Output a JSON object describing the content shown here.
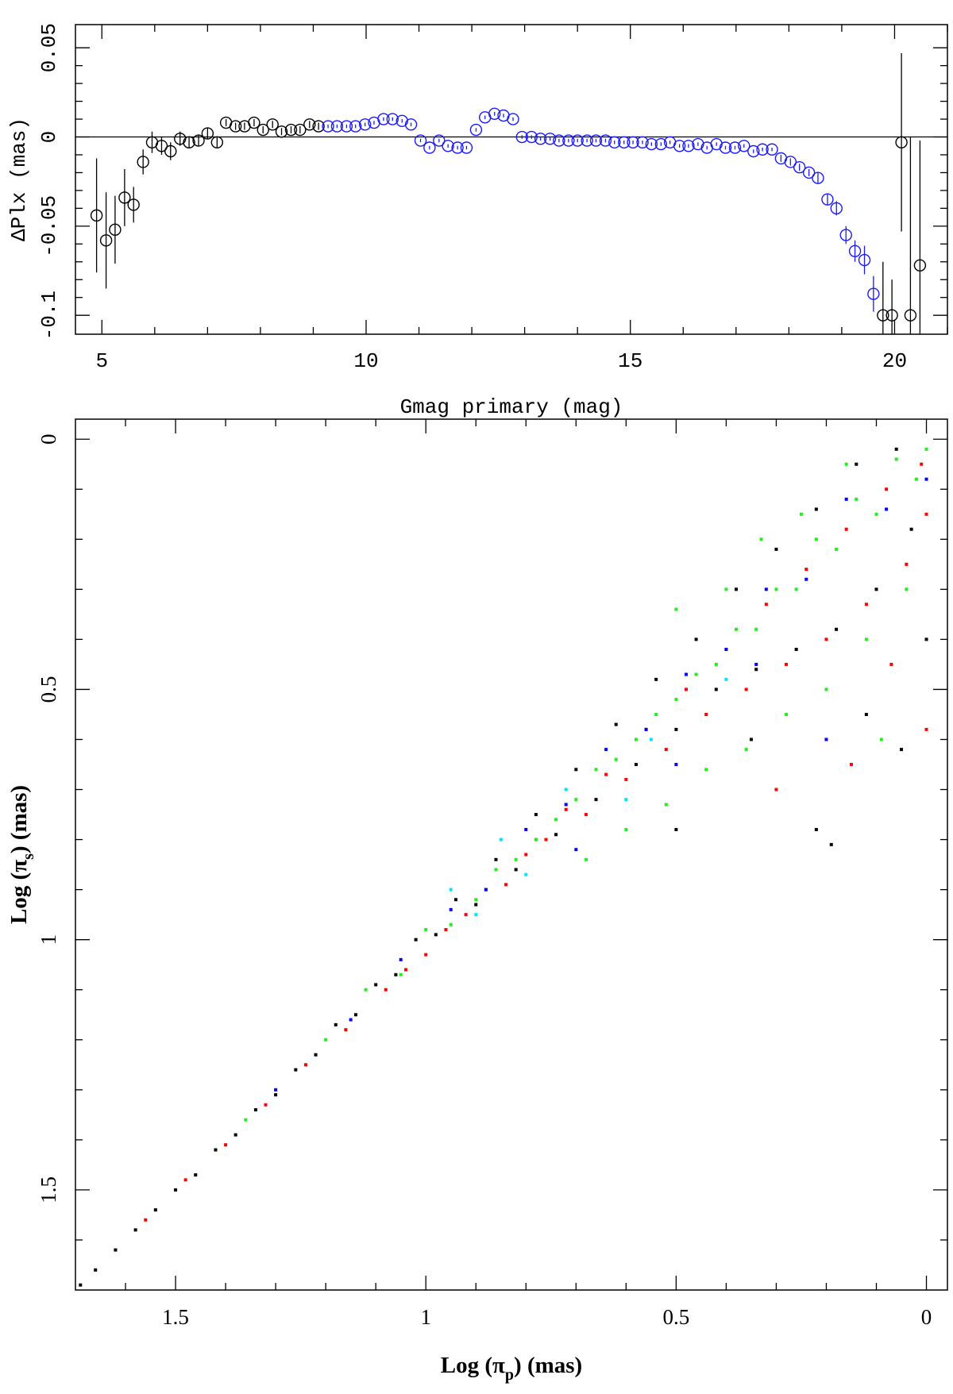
{
  "chart_data": [
    {
      "type": "errorbar",
      "x_label": "Gmag primary (mag)",
      "y_label": "ΔPlx (mas)",
      "xlim": [
        4.5,
        21
      ],
      "ylim": [
        -0.1106,
        0.063
      ],
      "xticks": [
        5,
        10,
        15,
        20
      ],
      "yticks": [
        -0.1,
        -0.05,
        0,
        0.05
      ],
      "xminorticks": [
        6,
        7,
        8,
        9,
        11,
        12,
        13,
        14,
        16,
        17,
        18,
        19,
        21
      ],
      "yminorticks": [
        -0.09,
        -0.08,
        -0.07,
        -0.06,
        -0.04,
        -0.03,
        -0.02,
        -0.01,
        0.01,
        0.02,
        0.03,
        0.04
      ],
      "reference_line": 0,
      "series": [
        {
          "color": "#000000",
          "x": [
            4.9,
            5.08,
            5.25,
            5.43,
            5.6,
            5.78,
            5.95,
            6.13,
            6.3,
            6.48,
            6.65,
            6.83,
            7.0,
            7.18,
            7.35,
            7.53,
            7.7,
            7.88,
            8.05,
            8.23,
            8.4,
            8.58,
            8.75,
            8.93,
            9.1,
            19.78,
            19.95,
            20.13,
            20.3,
            20.48
          ],
          "values": [
            -0.044,
            -0.058,
            -0.052,
            -0.034,
            -0.038,
            -0.014,
            -0.003,
            -0.005,
            -0.008,
            -0.001,
            -0.003,
            -0.002,
            0.002,
            -0.003,
            0.008,
            0.006,
            0.006,
            0.008,
            0.004,
            0.007,
            0.003,
            0.004,
            0.004,
            0.007,
            0.006,
            -0.1,
            -0.1,
            -0.003,
            -0.1,
            -0.072
          ],
          "errors": [
            0.032,
            0.027,
            0.019,
            0.016,
            0.01,
            0.007,
            0.006,
            0.005,
            0.005,
            0.004,
            0.003,
            0.003,
            0.003,
            0.003,
            0.002,
            0.002,
            0.002,
            0.002,
            0.002,
            0.002,
            0.002,
            0.002,
            0.002,
            0.002,
            0.002,
            0.03,
            0.02,
            0.05,
            0.1,
            0.07
          ]
        },
        {
          "color": "#1a1aff",
          "x": [
            9.28,
            9.45,
            9.63,
            9.8,
            9.98,
            10.15,
            10.33,
            10.5,
            10.68,
            10.85,
            11.03,
            11.2,
            11.38,
            11.55,
            11.73,
            11.9,
            12.08,
            12.25,
            12.43,
            12.6,
            12.78,
            12.95,
            13.13,
            13.3,
            13.48,
            13.65,
            13.83,
            14.0,
            14.18,
            14.35,
            14.53,
            14.7,
            14.88,
            15.05,
            15.23,
            15.4,
            15.58,
            15.75,
            15.93,
            16.1,
            16.28,
            16.45,
            16.63,
            16.8,
            16.98,
            17.15,
            17.33,
            17.5,
            17.68,
            17.85,
            18.03,
            18.2,
            18.38,
            18.55,
            18.73,
            18.9,
            19.08,
            19.25,
            19.43,
            19.6
          ],
          "values": [
            0.006,
            0.006,
            0.006,
            0.006,
            0.007,
            0.008,
            0.01,
            0.01,
            0.009,
            0.007,
            -0.002,
            -0.006,
            -0.002,
            -0.005,
            -0.006,
            -0.006,
            0.004,
            0.011,
            0.013,
            0.012,
            0.01,
            0.0,
            0.0,
            -0.001,
            -0.001,
            -0.002,
            -0.002,
            -0.002,
            -0.002,
            -0.002,
            -0.002,
            -0.003,
            -0.003,
            -0.003,
            -0.003,
            -0.004,
            -0.004,
            -0.003,
            -0.005,
            -0.005,
            -0.004,
            -0.006,
            -0.004,
            -0.006,
            -0.006,
            -0.005,
            -0.008,
            -0.007,
            -0.007,
            -0.012,
            -0.014,
            -0.017,
            -0.02,
            -0.023,
            -0.035,
            -0.04,
            -0.055,
            -0.064,
            -0.069,
            -0.088
          ],
          "errors": [
            0.001,
            0.001,
            0.001,
            0.001,
            0.001,
            0.001,
            0.001,
            0.001,
            0.001,
            0.001,
            0.001,
            0.001,
            0.001,
            0.001,
            0.001,
            0.001,
            0.001,
            0.001,
            0.001,
            0.001,
            0.001,
            0.001,
            0.001,
            0.001,
            0.001,
            0.001,
            0.001,
            0.001,
            0.001,
            0.001,
            0.001,
            0.001,
            0.001,
            0.001,
            0.001,
            0.001,
            0.001,
            0.001,
            0.001,
            0.001,
            0.001,
            0.001,
            0.001,
            0.001,
            0.001,
            0.001,
            0.001,
            0.001,
            0.001,
            0.002,
            0.002,
            0.002,
            0.002,
            0.003,
            0.003,
            0.004,
            0.005,
            0.006,
            0.008,
            0.01
          ]
        }
      ]
    },
    {
      "type": "scatter",
      "x_label": [
        "Log (π",
        "p",
        ") (mas)"
      ],
      "y_label": [
        "Log (π",
        "s",
        ") (mas)"
      ],
      "xlim": [
        1.7,
        -0.042
      ],
      "ylim": [
        1.7,
        -0.04
      ],
      "xticks": [
        1.5,
        1,
        0.5,
        0
      ],
      "yticks": [
        0,
        0.5,
        1,
        1.5
      ],
      "xminorticks": [
        1.6,
        1.4,
        1.3,
        1.2,
        1.1,
        0.9,
        0.8,
        0.7,
        0.6,
        0.4,
        0.3,
        0.2,
        0.1
      ],
      "yminorticks": [
        0.1,
        0.2,
        0.3,
        0.4,
        0.6,
        0.7,
        0.8,
        0.9,
        1.1,
        1.2,
        1.3,
        1.4,
        1.6
      ],
      "series": [
        {
          "color": "#000000",
          "x": [
            1.69,
            1.66,
            1.62,
            1.58,
            1.54,
            1.5,
            1.46,
            1.42,
            1.38,
            1.34,
            1.3,
            1.26,
            1.22,
            1.18,
            1.14,
            1.1,
            1.06,
            1.02,
            0.98,
            0.94,
            0.9,
            0.86,
            0.82,
            0.78,
            0.74,
            0.7,
            0.66,
            0.62,
            0.58,
            0.54,
            0.5,
            0.46,
            0.42,
            0.38,
            0.34,
            0.3,
            0.26,
            0.22,
            0.18,
            0.14,
            0.1,
            0.06,
            0.03,
            0.0,
            0.22,
            0.19,
            0.35,
            0.5,
            0.12,
            0.05
          ],
          "values": [
            1.69,
            1.66,
            1.62,
            1.58,
            1.54,
            1.5,
            1.47,
            1.42,
            1.39,
            1.34,
            1.31,
            1.26,
            1.23,
            1.17,
            1.15,
            1.09,
            1.07,
            1.0,
            0.99,
            0.92,
            0.93,
            0.84,
            0.86,
            0.75,
            0.79,
            0.66,
            0.72,
            0.57,
            0.65,
            0.48,
            0.58,
            0.4,
            0.5,
            0.3,
            0.46,
            0.22,
            0.42,
            0.14,
            0.38,
            0.05,
            0.3,
            0.02,
            0.18,
            0.4,
            0.78,
            0.81,
            0.6,
            0.78,
            0.55,
            0.62
          ]
        },
        {
          "color": "#ff0000",
          "x": [
            1.56,
            1.48,
            1.4,
            1.32,
            1.24,
            1.16,
            1.08,
            1.04,
            1.0,
            0.96,
            0.92,
            0.88,
            0.84,
            0.8,
            0.76,
            0.72,
            0.68,
            0.64,
            0.6,
            0.56,
            0.52,
            0.48,
            0.44,
            0.4,
            0.36,
            0.32,
            0.28,
            0.24,
            0.2,
            0.16,
            0.12,
            0.08,
            0.04,
            0.01,
            0.0,
            0.07,
            0.15,
            0.3,
            0.78,
            0.0
          ],
          "values": [
            1.56,
            1.48,
            1.41,
            1.33,
            1.25,
            1.18,
            1.1,
            1.06,
            1.03,
            0.98,
            0.95,
            0.9,
            0.89,
            0.83,
            0.8,
            0.74,
            0.75,
            0.67,
            0.68,
            0.58,
            0.62,
            0.5,
            0.55,
            0.42,
            0.5,
            0.33,
            0.45,
            0.26,
            0.4,
            0.18,
            0.33,
            0.1,
            0.25,
            0.05,
            0.15,
            0.45,
            0.65,
            0.7,
            0.8,
            0.58
          ]
        },
        {
          "color": "#22ee22",
          "x": [
            1.36,
            1.2,
            1.12,
            1.05,
            1.0,
            0.95,
            0.9,
            0.86,
            0.82,
            0.78,
            0.74,
            0.7,
            0.66,
            0.62,
            0.58,
            0.54,
            0.5,
            0.46,
            0.42,
            0.38,
            0.34,
            0.3,
            0.26,
            0.22,
            0.18,
            0.14,
            0.1,
            0.06,
            0.02,
            0.0,
            0.12,
            0.2,
            0.28,
            0.36,
            0.44,
            0.52,
            0.6,
            0.68,
            0.5,
            0.33,
            0.16,
            0.04,
            0.09,
            0.25,
            0.4
          ],
          "values": [
            1.36,
            1.2,
            1.1,
            1.07,
            0.98,
            0.97,
            0.92,
            0.86,
            0.84,
            0.8,
            0.76,
            0.72,
            0.66,
            0.64,
            0.6,
            0.55,
            0.52,
            0.47,
            0.45,
            0.38,
            0.38,
            0.3,
            0.3,
            0.2,
            0.22,
            0.12,
            0.15,
            0.04,
            0.08,
            0.02,
            0.4,
            0.5,
            0.55,
            0.62,
            0.66,
            0.73,
            0.78,
            0.84,
            0.34,
            0.2,
            0.05,
            0.3,
            0.6,
            0.15,
            0.3
          ]
        },
        {
          "color": "#0000ff",
          "x": [
            1.3,
            1.15,
            1.05,
            0.95,
            0.88,
            0.8,
            0.72,
            0.64,
            0.56,
            0.48,
            0.4,
            0.32,
            0.24,
            0.16,
            0.08,
            0.0,
            0.34,
            0.2,
            0.5,
            0.7
          ],
          "values": [
            1.3,
            1.16,
            1.04,
            0.94,
            0.9,
            0.78,
            0.73,
            0.62,
            0.58,
            0.47,
            0.42,
            0.3,
            0.28,
            0.12,
            0.14,
            0.08,
            0.45,
            0.6,
            0.65,
            0.82
          ]
        },
        {
          "color": "#00e5ff",
          "x": [
            0.95,
            0.9,
            0.85,
            0.8,
            0.72,
            0.6,
            0.55,
            0.4
          ],
          "values": [
            0.9,
            0.95,
            0.8,
            0.87,
            0.7,
            0.72,
            0.6,
            0.48
          ]
        }
      ]
    }
  ]
}
